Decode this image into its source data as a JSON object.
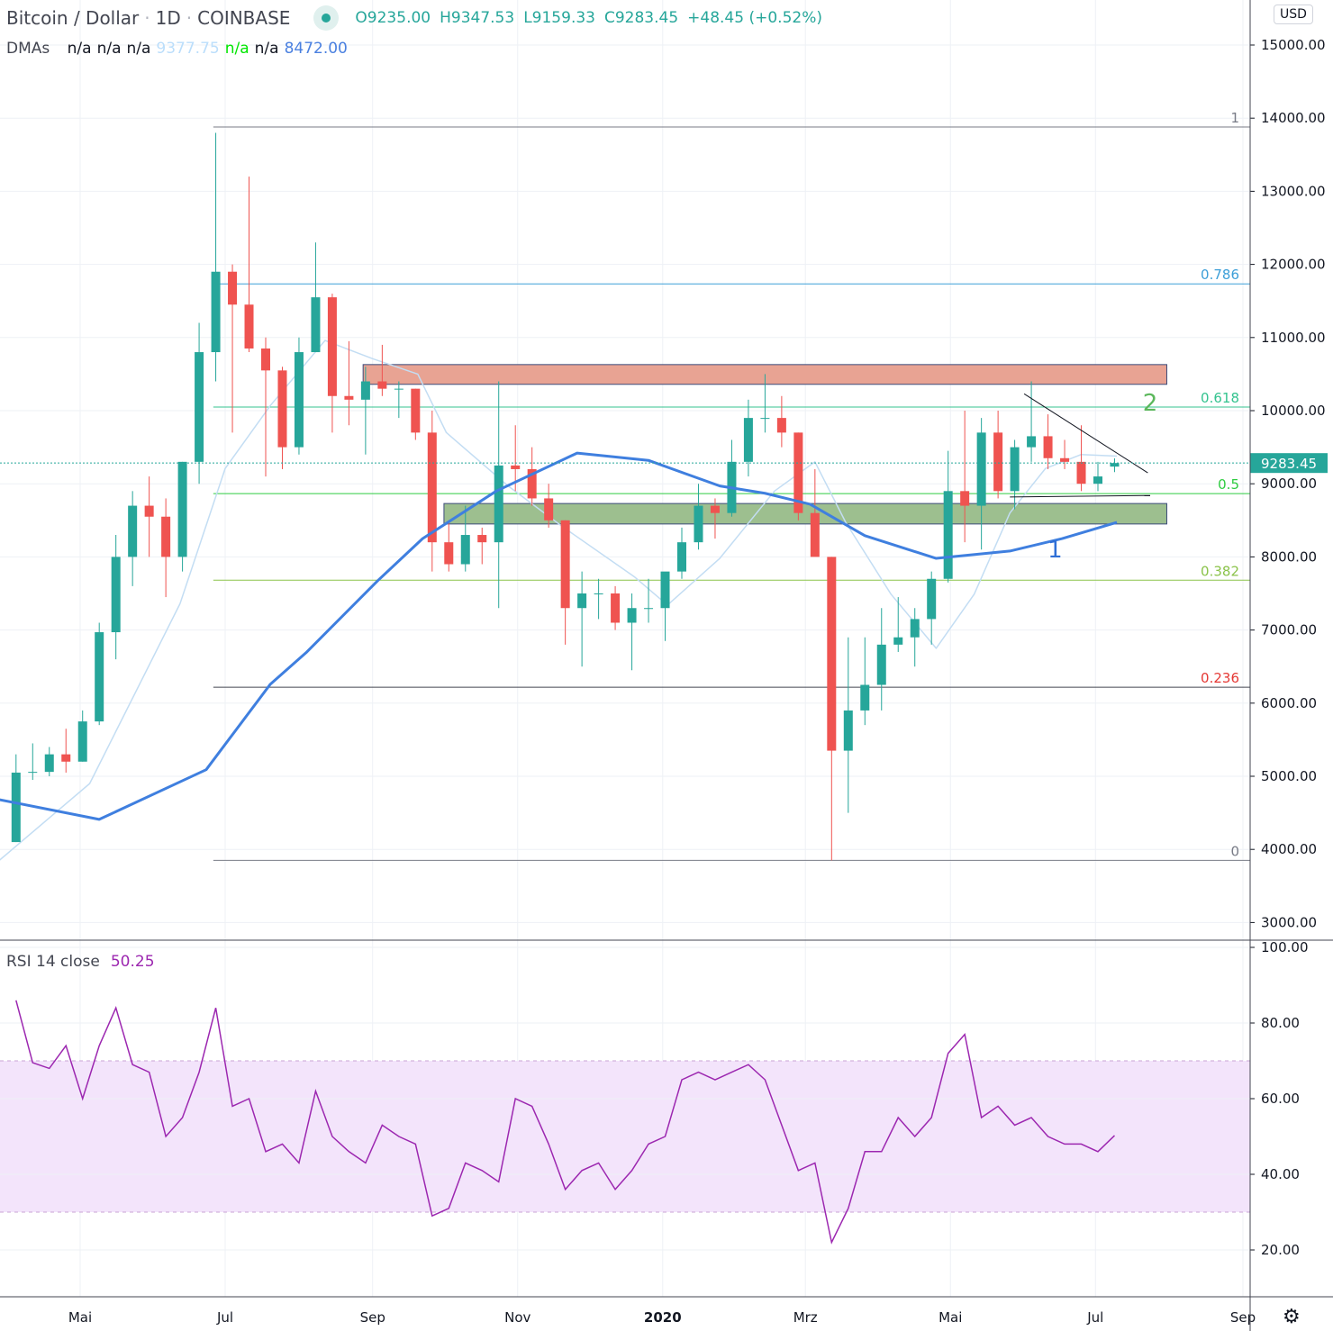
{
  "header": {
    "symbol": "Bitcoin / Dollar",
    "sep1": "·",
    "interval": "1D",
    "sep2": "·",
    "exchange": "COINBASE",
    "open": "O9235.00",
    "high": "H9347.53",
    "low": "L9159.33",
    "close": "C9283.45",
    "change": "+48.45 (+0.52%)"
  },
  "dmas": {
    "label": "DMAs",
    "values": [
      "n/a",
      "n/a",
      "n/a",
      "9377.75",
      "n/a",
      "n/a",
      "8472.00"
    ],
    "colors": [
      "#131722",
      "#131722",
      "#131722",
      "#bbdefb",
      "#00e600",
      "#131722",
      "#4a80e0"
    ]
  },
  "rsi_legend": {
    "label": "RSI 14 close",
    "value": "50.25"
  },
  "currency_button": "USD",
  "settings_icon": "gear-icon",
  "colors": {
    "up": "#26a69a",
    "down": "#ef5350",
    "ma200": "#3f7fdf",
    "ma50": "#c3ddf3",
    "rsi": "#9c27b0",
    "rsi_band": "#f3e4fb",
    "last_price": "#26a69a"
  },
  "chart_data": [
    {
      "type": "candlestick",
      "title": "Bitcoin / Dollar · 1D · COINBASE",
      "yaxis_ticks": [
        "3000.00",
        "4000.00",
        "5000.00",
        "6000.00",
        "7000.00",
        "8000.00",
        "9000.00",
        "10000.00",
        "11000.00",
        "12000.00",
        "13000.00",
        "14000.00",
        "15000.00"
      ],
      "ylim": [
        2700,
        15600
      ],
      "xaxis_ticks": [
        {
          "date": "2019-05-01",
          "label": "Mai"
        },
        {
          "date": "2019-07-01",
          "label": "Jul"
        },
        {
          "date": "2019-09-01",
          "label": "Sep"
        },
        {
          "date": "2019-11-01",
          "label": "Nov"
        },
        {
          "date": "2020-01-01",
          "label": "2020",
          "bold": true
        },
        {
          "date": "2020-03-01",
          "label": "Mrz"
        },
        {
          "date": "2020-05-01",
          "label": "Mai"
        },
        {
          "date": "2020-07-01",
          "label": "Jul"
        },
        {
          "date": "2020-09-01",
          "label": "Sep"
        }
      ],
      "xlim": [
        "2019-03-28",
        "2020-09-06"
      ],
      "grid": true,
      "last_price": {
        "value": 9283.45,
        "label": "9283.45"
      },
      "candles_weekly": [
        [
          "2019-04-01",
          4100,
          5300,
          4100,
          5050
        ],
        [
          "2019-04-08",
          5050,
          5450,
          4950,
          5060
        ],
        [
          "2019-04-15",
          5060,
          5400,
          5000,
          5300
        ],
        [
          "2019-04-22",
          5300,
          5650,
          5050,
          5200
        ],
        [
          "2019-04-29",
          5200,
          5900,
          5200,
          5750
        ],
        [
          "2019-05-06",
          5750,
          7100,
          5700,
          6970
        ],
        [
          "2019-05-13",
          6970,
          8300,
          6600,
          8000
        ],
        [
          "2019-05-20",
          8000,
          8900,
          7600,
          8700
        ],
        [
          "2019-05-27",
          8700,
          9100,
          8000,
          8550
        ],
        [
          "2019-06-03",
          8550,
          8800,
          7450,
          8000
        ],
        [
          "2019-06-10",
          8000,
          9300,
          7800,
          9300
        ],
        [
          "2019-06-17",
          9300,
          11200,
          9000,
          10800
        ],
        [
          "2019-06-24",
          10800,
          13800,
          10400,
          11900
        ],
        [
          "2019-07-01",
          11900,
          12000,
          9700,
          11450
        ],
        [
          "2019-07-08",
          11450,
          13200,
          10800,
          10850
        ],
        [
          "2019-07-15",
          10850,
          11000,
          9100,
          10550
        ],
        [
          "2019-07-22",
          10550,
          10600,
          9200,
          9500
        ],
        [
          "2019-07-29",
          9500,
          11000,
          9400,
          10800
        ],
        [
          "2019-08-05",
          10800,
          12300,
          10800,
          11550
        ],
        [
          "2019-08-12",
          11550,
          11600,
          9700,
          10200
        ],
        [
          "2019-08-19",
          10200,
          10950,
          9800,
          10150
        ],
        [
          "2019-08-26",
          10150,
          10600,
          9400,
          10400
        ],
        [
          "2019-09-02",
          10400,
          10900,
          10200,
          10300
        ],
        [
          "2019-09-09",
          10300,
          10400,
          9900,
          10300
        ],
        [
          "2019-09-16",
          10300,
          10300,
          9600,
          9700
        ],
        [
          "2019-09-23",
          9700,
          10000,
          7800,
          8200
        ],
        [
          "2019-09-30",
          8200,
          8500,
          7800,
          7900
        ],
        [
          "2019-10-07",
          7900,
          8700,
          7800,
          8300
        ],
        [
          "2019-10-14",
          8300,
          8400,
          7900,
          8200
        ],
        [
          "2019-10-21",
          8200,
          10400,
          7300,
          9250
        ],
        [
          "2019-10-28",
          9250,
          9800,
          8900,
          9200
        ],
        [
          "2019-11-04",
          9200,
          9500,
          8700,
          8800
        ],
        [
          "2019-11-11",
          8800,
          9000,
          8400,
          8500
        ],
        [
          "2019-11-18",
          8500,
          8500,
          6800,
          7300
        ],
        [
          "2019-11-25",
          7300,
          7800,
          6500,
          7500
        ],
        [
          "2019-12-02",
          7500,
          7700,
          7150,
          7500
        ],
        [
          "2019-12-09",
          7500,
          7600,
          7000,
          7100
        ],
        [
          "2019-12-16",
          7100,
          7500,
          6450,
          7300
        ],
        [
          "2019-12-23",
          7300,
          7700,
          7100,
          7300
        ],
        [
          "2019-12-30",
          7300,
          7500,
          6850,
          7800
        ],
        [
          "2020-01-06",
          7800,
          8400,
          7700,
          8200
        ],
        [
          "2020-01-13",
          8200,
          9000,
          8100,
          8700
        ],
        [
          "2020-01-20",
          8700,
          8800,
          8250,
          8600
        ],
        [
          "2020-01-27",
          8600,
          9600,
          8550,
          9300
        ],
        [
          "2020-02-03",
          9300,
          10150,
          9100,
          9900
        ],
        [
          "2020-02-10",
          9900,
          10500,
          9700,
          9900
        ],
        [
          "2020-02-17",
          9900,
          10200,
          9500,
          9700
        ],
        [
          "2020-02-24",
          9700,
          9700,
          8500,
          8600
        ],
        [
          "2020-03-02",
          8600,
          9200,
          8500,
          8000
        ],
        [
          "2020-03-09",
          8000,
          8000,
          3850,
          5350
        ],
        [
          "2020-03-16",
          5350,
          6900,
          4500,
          5900
        ],
        [
          "2020-03-23",
          5900,
          6900,
          5700,
          6250
        ],
        [
          "2020-03-30",
          6250,
          7300,
          5900,
          6800
        ],
        [
          "2020-04-06",
          6800,
          7450,
          6700,
          6900
        ],
        [
          "2020-04-13",
          6900,
          7300,
          6500,
          7150
        ],
        [
          "2020-04-20",
          7150,
          7800,
          6800,
          7700
        ],
        [
          "2020-04-27",
          7700,
          9450,
          7650,
          8900
        ],
        [
          "2020-05-04",
          8900,
          10000,
          8200,
          8700
        ],
        [
          "2020-05-11",
          8700,
          9900,
          8100,
          9700
        ],
        [
          "2020-05-18",
          9700,
          10000,
          8800,
          8900
        ],
        [
          "2020-05-25",
          8900,
          9600,
          8650,
          9500
        ],
        [
          "2020-06-01",
          9500,
          10400,
          9300,
          9650
        ],
        [
          "2020-06-08",
          9650,
          9950,
          9200,
          9350
        ],
        [
          "2020-06-15",
          9350,
          9600,
          9200,
          9300
        ],
        [
          "2020-06-22",
          9300,
          9800,
          8900,
          9000
        ],
        [
          "2020-06-29",
          9000,
          9300,
          8900,
          9100
        ],
        [
          "2020-07-06",
          9235,
          9347.53,
          9159.33,
          9283.45
        ]
      ],
      "ma200": [
        [
          "2019-03-28",
          4680
        ],
        [
          "2019-05-09",
          4410
        ],
        [
          "2019-06-23",
          5090
        ],
        [
          "2019-07-20",
          6260
        ],
        [
          "2019-08-04",
          6690
        ],
        [
          "2019-09-03",
          7670
        ],
        [
          "2019-09-22",
          8250
        ],
        [
          "2019-10-23",
          8900
        ],
        [
          "2019-11-26",
          9420
        ],
        [
          "2019-12-26",
          9320
        ],
        [
          "2020-01-25",
          8970
        ],
        [
          "2020-02-13",
          8870
        ],
        [
          "2020-03-03",
          8720
        ],
        [
          "2020-03-26",
          8290
        ],
        [
          "2020-04-25",
          7980
        ],
        [
          "2020-05-26",
          8080
        ],
        [
          "2020-06-17",
          8250
        ],
        [
          "2020-07-10",
          8472
        ]
      ],
      "ma50": [
        [
          "2019-03-28",
          3850
        ],
        [
          "2019-05-05",
          4900
        ],
        [
          "2019-06-12",
          7360
        ],
        [
          "2019-07-01",
          9210
        ],
        [
          "2019-07-20",
          10070
        ],
        [
          "2019-08-12",
          10960
        ],
        [
          "2019-09-01",
          10710
        ],
        [
          "2019-09-20",
          10500
        ],
        [
          "2019-10-02",
          9700
        ],
        [
          "2019-10-28",
          8970
        ],
        [
          "2019-11-20",
          8410
        ],
        [
          "2019-12-20",
          7730
        ],
        [
          "2020-01-03",
          7340
        ],
        [
          "2020-01-25",
          7980
        ],
        [
          "2020-02-17",
          8900
        ],
        [
          "2020-03-05",
          9300
        ],
        [
          "2020-03-18",
          8470
        ],
        [
          "2020-04-06",
          7490
        ],
        [
          "2020-04-25",
          6750
        ],
        [
          "2020-05-11",
          7490
        ],
        [
          "2020-05-26",
          8600
        ],
        [
          "2020-06-10",
          9210
        ],
        [
          "2020-06-25",
          9400
        ],
        [
          "2020-07-10",
          9377.75
        ]
      ],
      "fib_levels": [
        {
          "ratio": "1",
          "price": 13880,
          "color": "#787b86"
        },
        {
          "ratio": "0.786",
          "price": 11734,
          "color": "#3d9fd8"
        },
        {
          "ratio": "0.618",
          "price": 10049,
          "color": "#34c38f"
        },
        {
          "ratio": "0.5",
          "price": 8865,
          "color": "#2ecc40"
        },
        {
          "ratio": "0.382",
          "price": 7681,
          "color": "#8bc34a"
        },
        {
          "ratio": "0.236",
          "price": 6217,
          "color": "#e53935",
          "line": "#434651"
        },
        {
          "ratio": "0",
          "price": 3850,
          "color": "#787b86"
        }
      ],
      "fib_start": "2019-06-26",
      "zones": [
        {
          "name": "resistance",
          "from": "2019-08-28",
          "to": "2020-07-31",
          "low": 10360,
          "high": 10630,
          "color": "#e8a393"
        },
        {
          "name": "support",
          "from": "2019-10-01",
          "to": "2020-07-31",
          "low": 8450,
          "high": 8730,
          "color": "#9dbf8f"
        }
      ],
      "trendlines": [
        {
          "from": [
            "2020-06-01",
            10230
          ],
          "to": [
            "2020-07-23",
            9150
          ],
          "color": "#131722"
        },
        {
          "from": [
            "2020-05-26",
            8820
          ],
          "to": [
            "2020-07-24",
            8840
          ],
          "color": "#131722"
        }
      ],
      "annotations": [
        {
          "text": "2",
          "date": "2020-07-24",
          "price": 10000,
          "color": "#5cb85c"
        },
        {
          "text": "1",
          "date": "2020-06-14",
          "price": 7990,
          "color": "#2f6fd6"
        }
      ]
    },
    {
      "type": "line",
      "title": "RSI 14 close",
      "yaxis_ticks": [
        "20.00",
        "40.00",
        "60.00",
        "80.00",
        "100.00"
      ],
      "ylim": [
        7,
        102
      ],
      "band": [
        30,
        70
      ],
      "values_weekly": [
        86,
        69.5,
        68,
        74,
        60,
        74,
        84,
        69,
        67,
        50,
        55,
        67,
        84,
        58,
        60,
        46,
        48,
        43,
        62,
        50,
        46,
        43,
        53,
        50,
        48,
        29,
        31,
        43,
        41,
        38,
        60,
        58,
        48,
        36,
        41,
        43,
        36,
        41,
        48,
        50,
        65,
        67,
        65,
        67,
        69,
        65,
        53,
        41,
        43,
        22,
        31,
        46,
        46,
        55,
        50,
        55,
        72,
        77,
        55,
        58,
        53,
        55,
        50,
        48,
        48,
        46,
        50.25
      ]
    }
  ]
}
